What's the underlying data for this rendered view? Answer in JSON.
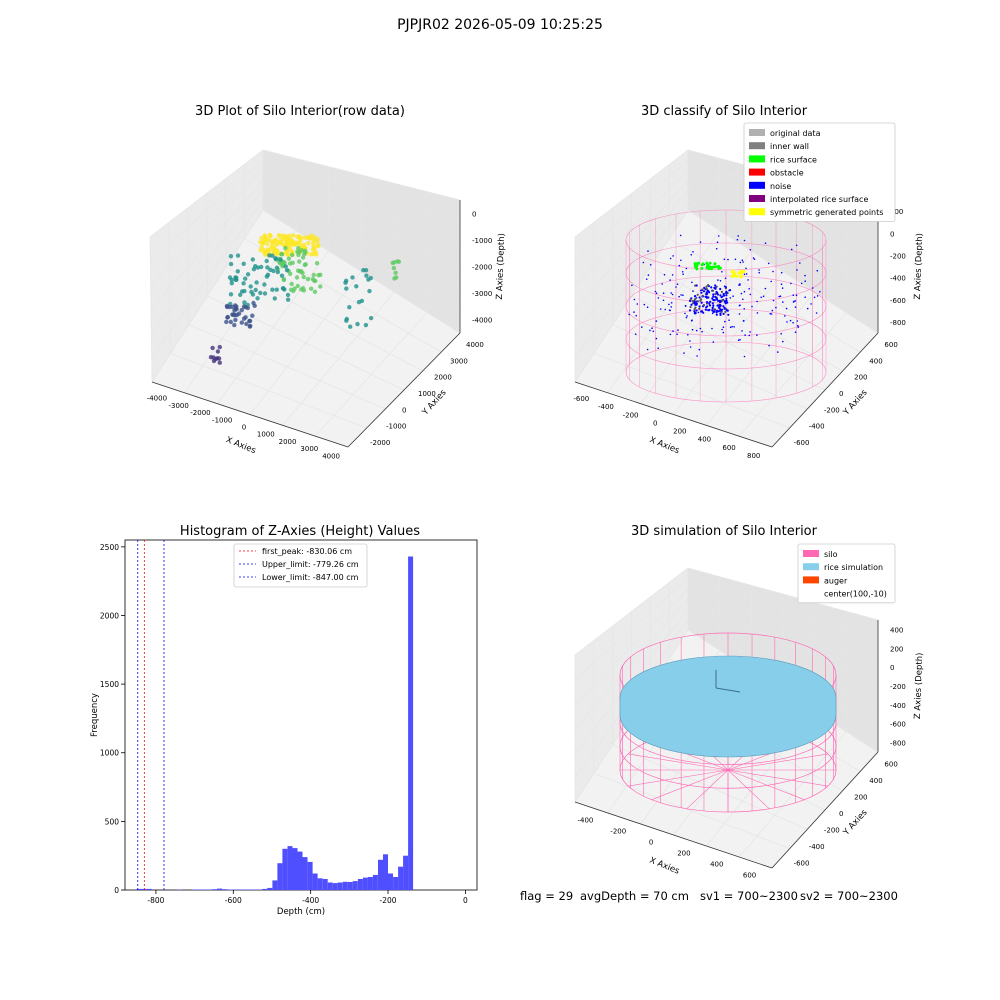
{
  "suptitle": "PJPJR02 2026-05-09 10:25:25",
  "footer": {
    "flag": "flag = 29",
    "avg_depth": "avgDepth = 70 cm",
    "sv1": "sv1 = 700~2300",
    "sv2": "sv2 = 700~2300"
  },
  "colors": {
    "raw_scatter_low": "#46337e",
    "raw_scatter_mid": "#21918c",
    "raw_scatter_high": "#fde725",
    "histogram_bar": "#4f4fff",
    "first_peak_line": "#ff0000",
    "limit_lines": "#0000ff",
    "silo_wire": "#ff69b4",
    "rice_simulation": "#87ceeb",
    "auger": "#ff4500"
  },
  "chart_data": [
    {
      "type": "scatter",
      "subtype": "3d",
      "title": "3D Plot of Silo Interior(row data)",
      "xlabel": "X Axies",
      "ylabel": "Y Axies",
      "zlabel": "Z Axies (Depth)",
      "x_ticks": [
        "-4000",
        "-3000",
        "-2000",
        "-1000",
        "0",
        "1000",
        "2000",
        "3000",
        "4000"
      ],
      "y_ticks": [
        "-2000",
        "-1000",
        "0",
        "1000",
        "2000",
        "3000",
        "4000"
      ],
      "z_ticks": [
        "0",
        "-1000",
        "-2000",
        "-3000",
        "-4000"
      ],
      "xlim": [
        -4000,
        4000
      ],
      "ylim": [
        -2000,
        4000
      ],
      "zlim": [
        -4500,
        0
      ],
      "colormap": "viridis",
      "grid": true
    },
    {
      "type": "scatter",
      "subtype": "3d",
      "title": "3D classify of Silo Interior",
      "xlabel": "X Axies",
      "ylabel": "Y Axies",
      "zlabel": "Z Axies (Depth)",
      "x_ticks": [
        "-600",
        "-400",
        "-200",
        "0",
        "200",
        "400",
        "600",
        "800"
      ],
      "y_ticks": [
        "-600",
        "-400",
        "-200",
        "0",
        "200",
        "400",
        "600"
      ],
      "z_ticks": [
        "200",
        "0",
        "-200",
        "-400",
        "-600",
        "-800"
      ],
      "xlim": [
        -600,
        800
      ],
      "ylim": [
        -600,
        600
      ],
      "zlim": [
        -900,
        300
      ],
      "legend_position": "top-right",
      "legend": [
        {
          "label": "original data",
          "color": "#b0b0b0"
        },
        {
          "label": "inner wall",
          "color": "#808080"
        },
        {
          "label": "rice surface",
          "color": "#00ff00"
        },
        {
          "label": "obstacle",
          "color": "#ff0000"
        },
        {
          "label": "noise",
          "color": "#0000ff"
        },
        {
          "label": "interpolated rice surface",
          "color": "#800080"
        },
        {
          "label": "symmetric generated points",
          "color": "#ffff00"
        }
      ],
      "grid": true
    },
    {
      "type": "bar",
      "subtype": "histogram",
      "title": "Histogram of Z-Axies (Height) Values",
      "xlabel": "Depth (cm)",
      "ylabel": "Frequency",
      "xlim": [
        -880,
        30
      ],
      "ylim": [
        0,
        2550
      ],
      "x_ticks": [
        -800,
        -600,
        -400,
        -200,
        0
      ],
      "y_ticks": [
        0,
        500,
        1000,
        1500,
        2000,
        2500
      ],
      "bin_width": 13,
      "bins": [
        {
          "x": -850,
          "count": 8
        },
        {
          "x": -837,
          "count": 8
        },
        {
          "x": -824,
          "count": 8
        },
        {
          "x": -746,
          "count": 4
        },
        {
          "x": -707,
          "count": 4
        },
        {
          "x": -694,
          "count": 4
        },
        {
          "x": -681,
          "count": 4
        },
        {
          "x": -668,
          "count": 4
        },
        {
          "x": -655,
          "count": 6
        },
        {
          "x": -642,
          "count": 10
        },
        {
          "x": -629,
          "count": 6
        },
        {
          "x": -616,
          "count": 4
        },
        {
          "x": -603,
          "count": 4
        },
        {
          "x": -590,
          "count": 4
        },
        {
          "x": -577,
          "count": 4
        },
        {
          "x": -564,
          "count": 4
        },
        {
          "x": -551,
          "count": 4
        },
        {
          "x": -538,
          "count": 4
        },
        {
          "x": -525,
          "count": 8
        },
        {
          "x": -512,
          "count": 15
        },
        {
          "x": -499,
          "count": 70
        },
        {
          "x": -486,
          "count": 195
        },
        {
          "x": -473,
          "count": 300
        },
        {
          "x": -460,
          "count": 320
        },
        {
          "x": -447,
          "count": 305
        },
        {
          "x": -434,
          "count": 280
        },
        {
          "x": -421,
          "count": 240
        },
        {
          "x": -408,
          "count": 205
        },
        {
          "x": -395,
          "count": 120
        },
        {
          "x": -382,
          "count": 85
        },
        {
          "x": -369,
          "count": 80
        },
        {
          "x": -356,
          "count": 55
        },
        {
          "x": -343,
          "count": 50
        },
        {
          "x": -330,
          "count": 55
        },
        {
          "x": -317,
          "count": 60
        },
        {
          "x": -304,
          "count": 58
        },
        {
          "x": -291,
          "count": 65
        },
        {
          "x": -278,
          "count": 80
        },
        {
          "x": -265,
          "count": 90
        },
        {
          "x": -252,
          "count": 95
        },
        {
          "x": -239,
          "count": 110
        },
        {
          "x": -226,
          "count": 220
        },
        {
          "x": -213,
          "count": 260
        },
        {
          "x": -200,
          "count": 120
        },
        {
          "x": -187,
          "count": 95
        },
        {
          "x": -174,
          "count": 170
        },
        {
          "x": -161,
          "count": 250
        },
        {
          "x": -148,
          "count": 2430
        }
      ],
      "vlines": [
        {
          "label": "first_peak: -830.06 cm",
          "value": -830.06,
          "color": "#ff0000"
        },
        {
          "label": "Upper_limit: -779.26 cm",
          "value": -779.26,
          "color": "#0000ff"
        },
        {
          "label": "Lower_limit: -847.00 cm",
          "value": -847.0,
          "color": "#0000ff"
        }
      ],
      "legend_position": "top-center",
      "grid": false
    },
    {
      "type": "scatter",
      "subtype": "3d-surface",
      "title": "3D simulation of Silo Interior",
      "xlabel": "X Axies",
      "ylabel": "Y Axies",
      "zlabel": "Z Axies (Depth)",
      "x_ticks": [
        "-400",
        "-200",
        "0",
        "200",
        "400",
        "600"
      ],
      "y_ticks": [
        "-600",
        "-400",
        "-200",
        "0",
        "200",
        "400",
        "600"
      ],
      "z_ticks": [
        "400",
        "200",
        "0",
        "-200",
        "-400",
        "-600",
        "-800"
      ],
      "xlim": [
        -500,
        700
      ],
      "ylim": [
        -600,
        600
      ],
      "zlim": [
        -900,
        450
      ],
      "legend_position": "top-right",
      "legend": [
        {
          "label": "silo",
          "color": "#ff69b4"
        },
        {
          "label": "rice simulation",
          "color": "#87ceeb"
        },
        {
          "label": "auger",
          "color": "#ff4500"
        },
        {
          "label": "center(100,-10)",
          "color": ""
        }
      ],
      "grid": true
    }
  ]
}
